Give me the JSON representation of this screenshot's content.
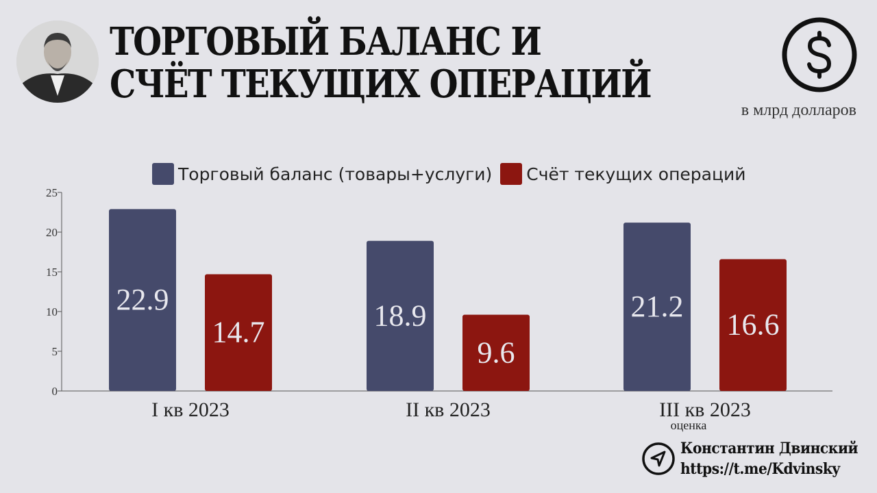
{
  "header": {
    "title_line1": "ТОРГОВЫЙ БАЛАНС И",
    "title_line2": "СЧЁТ ТЕКУЩИХ ОПЕРАЦИЙ",
    "units": "в млрд долларов",
    "icon": "dollar-icon"
  },
  "colors": {
    "background": "#e4e4e9",
    "trade_balance": "#454a6b",
    "current_account": "#8c1610",
    "bar_label": "#e8e8ee"
  },
  "chart_data": {
    "type": "bar",
    "categories": [
      "I кв 2023",
      "II кв 2023",
      "III кв 2023"
    ],
    "category_notes": [
      "",
      "",
      "оценка"
    ],
    "series": [
      {
        "name": "Торговый баланс (товары+услуги)",
        "values": [
          22.9,
          18.9,
          21.2
        ],
        "labels": [
          "22.9",
          "18.9",
          "21.2"
        ]
      },
      {
        "name": "Счёт текущих операций",
        "values": [
          14.7,
          9.6,
          16.6
        ],
        "labels": [
          "14.7",
          "9.6",
          "16.6"
        ]
      }
    ],
    "ylim": [
      0,
      25
    ],
    "yticks": [
      "0",
      "5",
      "10",
      "15",
      "20",
      "25"
    ],
    "legend": "top",
    "grid": false
  },
  "footer": {
    "author": "Константин Двинский",
    "link": "https://t.me/Kdvinsky",
    "icon": "send-icon"
  }
}
